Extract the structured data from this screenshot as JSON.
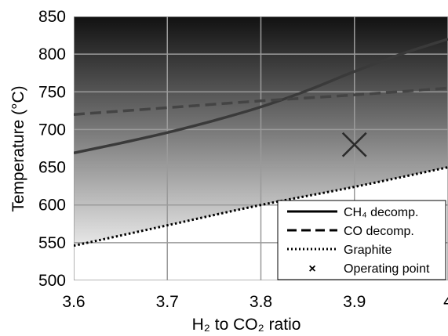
{
  "chart_data": {
    "type": "line",
    "xlabel": "H₂ to CO₂ ratio",
    "ylabel": "Temperature (°C)",
    "xlim": [
      3.6,
      4.0
    ],
    "ylim": [
      500,
      850
    ],
    "x_ticks": [
      "3.6",
      "3.7",
      "3.8",
      "3.9",
      "4"
    ],
    "y_ticks": [
      "500",
      "550",
      "600",
      "650",
      "700",
      "750",
      "800",
      "850"
    ],
    "grid": true,
    "legend_position": "bottom-right",
    "series": [
      {
        "name": "CH₄ decomp.",
        "style": "solid",
        "color": "#3a3a3a",
        "points": [
          [
            3.6,
            669
          ],
          [
            3.65,
            682
          ],
          [
            3.7,
            696
          ],
          [
            3.75,
            712
          ],
          [
            3.8,
            730
          ],
          [
            3.85,
            752
          ],
          [
            3.9,
            777
          ],
          [
            3.95,
            800
          ],
          [
            4.0,
            820
          ]
        ]
      },
      {
        "name": "CO decomp.",
        "style": "dashed",
        "color": "#444444",
        "points": [
          [
            3.6,
            720
          ],
          [
            3.7,
            729
          ],
          [
            3.8,
            738
          ],
          [
            3.9,
            746
          ],
          [
            4.0,
            755
          ]
        ]
      },
      {
        "name": "Graphite",
        "style": "dotted",
        "color": "#000000",
        "points": [
          [
            3.6,
            546
          ],
          [
            3.7,
            573
          ],
          [
            3.8,
            600
          ],
          [
            3.9,
            624
          ],
          [
            4.0,
            650
          ]
        ]
      }
    ],
    "markers": [
      {
        "name": "Operating point",
        "symbol": "×",
        "x": 3.9,
        "y": 680
      }
    ],
    "shading": {
      "description_free": true,
      "top_color": "#111111",
      "mid_color": "#6e6e6e",
      "bottom_color": "#e8e8e8"
    }
  }
}
